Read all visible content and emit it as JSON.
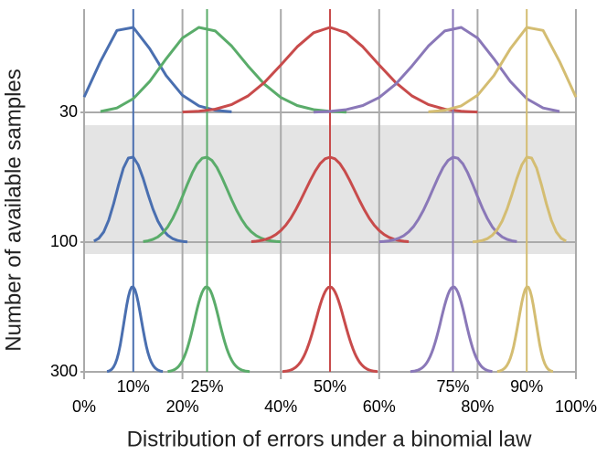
{
  "chart_data": {
    "type": "binomial-ridge",
    "x_label": "Distribution of errors under a binomial law",
    "y_label": "Number of available samples",
    "rows": [
      30,
      100,
      300
    ],
    "series": [
      {
        "name": "10%",
        "value": 10,
        "color": "#4a6fb0"
      },
      {
        "name": "25%",
        "value": 25,
        "color": "#5aac6a"
      },
      {
        "name": "50%",
        "value": 50,
        "color": "#c84b4b"
      },
      {
        "name": "75%",
        "value": 75,
        "color": "#8a78b8"
      },
      {
        "name": "90%",
        "value": 90,
        "color": "#d4bd72"
      }
    ],
    "xlim": [
      0,
      100
    ],
    "xticks": [
      {
        "value": 0,
        "label": "0%"
      },
      {
        "value": 20,
        "label": "20%"
      },
      {
        "value": 40,
        "label": "40%"
      },
      {
        "value": 60,
        "label": "60%"
      },
      {
        "value": 80,
        "label": "80%"
      },
      {
        "value": 100,
        "label": "100%"
      }
    ],
    "grid": true
  }
}
